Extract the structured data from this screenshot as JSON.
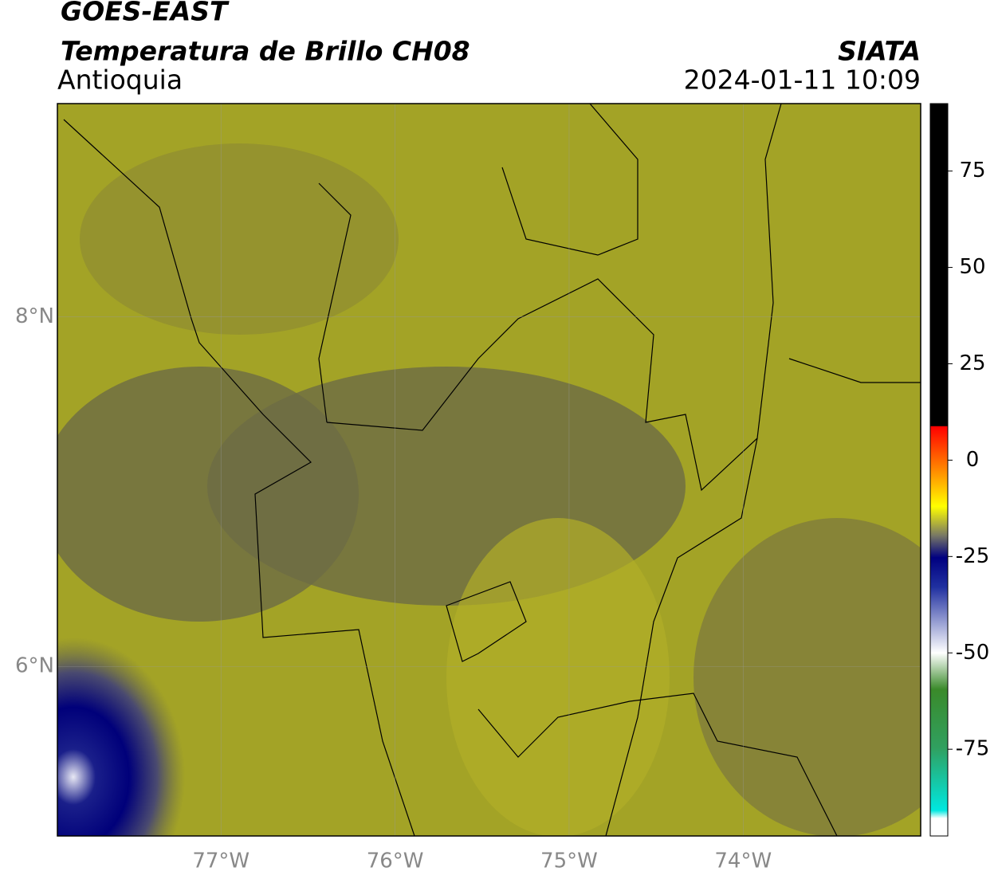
{
  "header": {
    "title": "GOES-EAST",
    "subtitle": "Temperatura de Brillo CH08",
    "region": "Antioquia",
    "source": "SIATA",
    "datetime": "2024-01-11 10:09"
  },
  "map": {
    "xlim": [
      -77.94,
      -72.98
    ],
    "ylim": [
      5.03,
      9.22
    ],
    "lon_ticks": [
      {
        "value": -77,
        "label": "77°W"
      },
      {
        "value": -76,
        "label": "76°W"
      },
      {
        "value": -75,
        "label": "75°W"
      },
      {
        "value": -74,
        "label": "74°W"
      }
    ],
    "lat_ticks": [
      {
        "value": 8,
        "label": "8°N"
      },
      {
        "value": 6,
        "label": "6°N"
      }
    ]
  },
  "colorbar": {
    "range": [
      -97.5,
      92.5
    ],
    "ticks": [
      75,
      50,
      25,
      0,
      -25,
      -50,
      -75
    ]
  }
}
